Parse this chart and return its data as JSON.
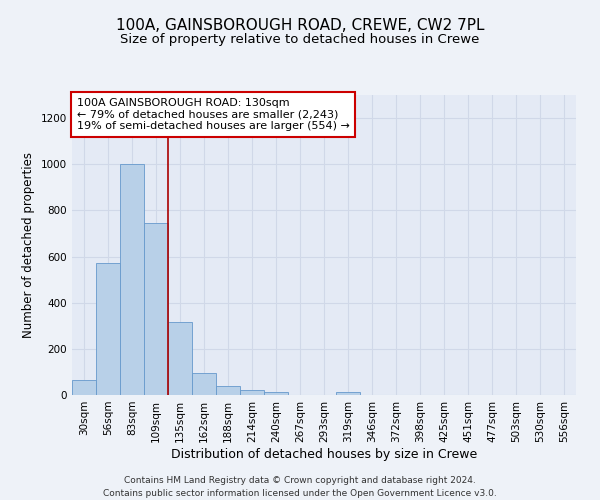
{
  "title1": "100A, GAINSBOROUGH ROAD, CREWE, CW2 7PL",
  "title2": "Size of property relative to detached houses in Crewe",
  "xlabel": "Distribution of detached houses by size in Crewe",
  "ylabel": "Number of detached properties",
  "bar_color": "#b8d0e8",
  "bar_edge_color": "#6699cc",
  "annotation_line_color": "#aa0000",
  "annotation_box_edge_color": "#cc0000",
  "annotation_text": "100A GAINSBOROUGH ROAD: 130sqm\n← 79% of detached houses are smaller (2,243)\n19% of semi-detached houses are larger (554) →",
  "categories": [
    "30sqm",
    "56sqm",
    "83sqm",
    "109sqm",
    "135sqm",
    "162sqm",
    "188sqm",
    "214sqm",
    "240sqm",
    "267sqm",
    "293sqm",
    "319sqm",
    "346sqm",
    "372sqm",
    "398sqm",
    "425sqm",
    "451sqm",
    "477sqm",
    "503sqm",
    "530sqm",
    "556sqm"
  ],
  "values": [
    65,
    570,
    1000,
    745,
    315,
    95,
    40,
    20,
    15,
    0,
    0,
    15,
    0,
    0,
    0,
    0,
    0,
    0,
    0,
    0,
    0
  ],
  "ylim": [
    0,
    1300
  ],
  "yticks": [
    0,
    200,
    400,
    600,
    800,
    1000,
    1200
  ],
  "red_line_bin": 3.5,
  "background_color": "#eef2f8",
  "plot_bg_color": "#e4eaf5",
  "grid_color": "#d0d8e8",
  "title1_fontsize": 11,
  "title2_fontsize": 9.5,
  "ylabel_fontsize": 8.5,
  "xlabel_fontsize": 9,
  "tick_fontsize": 7.5,
  "footer_fontsize": 6.5,
  "ann_fontsize": 8,
  "footer": "Contains HM Land Registry data © Crown copyright and database right 2024.\nContains public sector information licensed under the Open Government Licence v3.0."
}
